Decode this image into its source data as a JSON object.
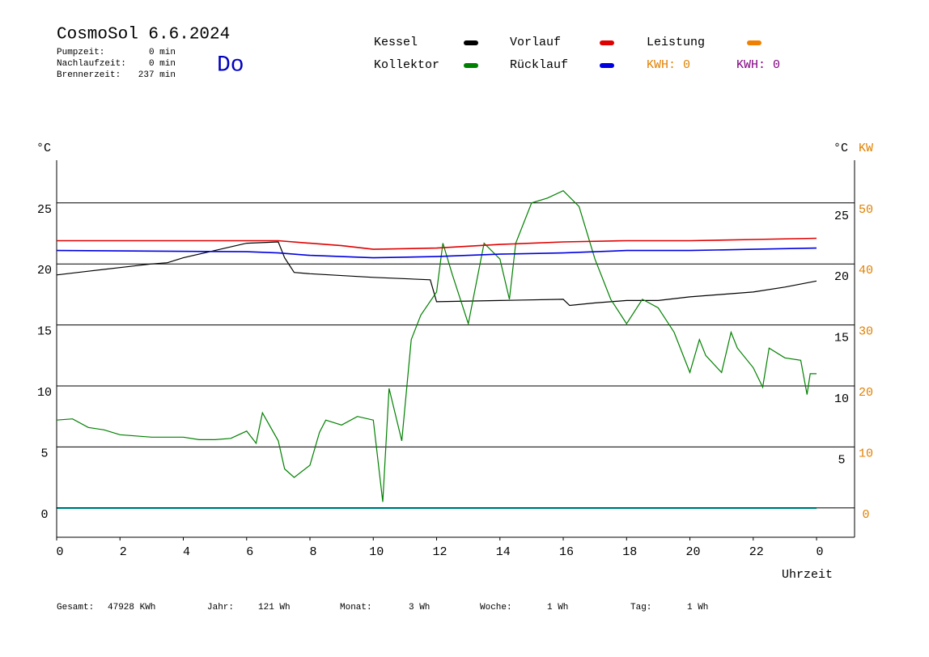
{
  "chart_data": {
    "type": "line",
    "title": "CosmoSol 6.6.2024",
    "day": "Do",
    "info": [
      {
        "label": "Pumpzeit:",
        "value": "0 min"
      },
      {
        "label": "Nachlaufzeit:",
        "value": "0 min"
      },
      {
        "label": "Brennerzeit:",
        "value": "237 min"
      }
    ],
    "y_label": "°C",
    "y2_label_c": "°C",
    "y2_label": "KW",
    "x_label": "Uhrzeit",
    "xlim": [
      0,
      25.2
    ],
    "xticks": [
      0,
      2,
      4,
      6,
      8,
      10,
      12,
      14,
      16,
      18,
      20,
      22,
      {
        "value": 24,
        "label": "0"
      }
    ],
    "ylim": [
      -2.4,
      28.5
    ],
    "yticks": [
      0,
      5,
      10,
      15,
      20,
      25
    ],
    "y2lim": [
      -4.8,
      57
    ],
    "y2ticks": [
      0,
      10,
      20,
      30,
      40,
      50
    ],
    "grid": true,
    "series": [
      {
        "name": "Kessel",
        "color": "#000000",
        "x": [
          0,
          1,
          2,
          3,
          3.5,
          4,
          5,
          6,
          7,
          7.2,
          7.5,
          8,
          10,
          11.8,
          12,
          14,
          16,
          16.2,
          17,
          18,
          19,
          20,
          21,
          22,
          23,
          24
        ],
        "values": [
          19.1,
          19.4,
          19.7,
          20.0,
          20.1,
          20.5,
          21.1,
          21.7,
          21.8,
          20.5,
          19.3,
          19.2,
          18.9,
          18.7,
          16.9,
          17.0,
          17.1,
          16.6,
          16.8,
          17.0,
          17.0,
          17.3,
          17.5,
          17.7,
          18.1,
          18.6
        ]
      },
      {
        "name": "Kollektor",
        "color": "#008000",
        "x": [
          0,
          0.5,
          1,
          1.5,
          2,
          2.5,
          3,
          3.5,
          4,
          4.5,
          5,
          5.5,
          6,
          6.3,
          6.5,
          7,
          7.2,
          7.5,
          8,
          8.3,
          8.5,
          9,
          9.5,
          10,
          10.3,
          10.5,
          10.9,
          11.2,
          11.5,
          12,
          12.2,
          12.5,
          13,
          13.5,
          14,
          14.3,
          14.5,
          15,
          15.5,
          16,
          16.5,
          17,
          17.5,
          18,
          18.5,
          19,
          19.5,
          20,
          20.3,
          20.5,
          21,
          21.3,
          21.5,
          22,
          22.3,
          22.5,
          23,
          23.5,
          23.7,
          23.8,
          24
        ],
        "values": [
          7.2,
          7.3,
          6.6,
          6.4,
          6.0,
          5.9,
          5.8,
          5.8,
          5.8,
          5.6,
          5.6,
          5.7,
          6.3,
          5.3,
          7.8,
          5.5,
          3.2,
          2.5,
          3.5,
          6.2,
          7.2,
          6.8,
          7.5,
          7.2,
          0.5,
          9.8,
          5.5,
          13.8,
          15.8,
          17.7,
          21.7,
          19.1,
          15.1,
          21.7,
          20.4,
          17.1,
          21.7,
          25.0,
          25.4,
          26.0,
          24.7,
          20.4,
          17.1,
          15.1,
          17.1,
          16.4,
          14.4,
          11.1,
          13.8,
          12.5,
          11.1,
          14.4,
          13.1,
          11.5,
          9.9,
          13.1,
          12.3,
          12.1,
          9.3,
          11.0,
          11.0
        ]
      },
      {
        "name": "Vorlauf",
        "color": "#e00000",
        "x": [
          0,
          7,
          8,
          9,
          10,
          12,
          14,
          16,
          18,
          20,
          22,
          24
        ],
        "values": [
          21.9,
          21.9,
          21.7,
          21.5,
          21.2,
          21.3,
          21.6,
          21.8,
          21.9,
          21.9,
          22.0,
          22.1
        ]
      },
      {
        "name": "Rücklauf",
        "color": "#0000e0",
        "x": [
          0,
          6,
          7,
          8,
          9,
          10,
          12,
          14,
          16,
          18,
          20,
          22,
          24
        ],
        "values": [
          21.1,
          21.0,
          20.9,
          20.7,
          20.6,
          20.5,
          20.6,
          20.8,
          20.9,
          21.1,
          21.1,
          21.2,
          21.3
        ]
      }
    ],
    "extra_legend": {
      "name": "Leistung",
      "color": "#f08000"
    },
    "kwh_labels": [
      {
        "text": "KWH: 0",
        "color": "#e08000"
      },
      {
        "text": "KWH: 0",
        "color": "#800080"
      }
    ],
    "footer": [
      {
        "label": "Gesamt:",
        "value": "47928 KWh"
      },
      {
        "label": "Jahr:",
        "value": "121 Wh"
      },
      {
        "label": "Monat:",
        "value": "3 Wh"
      },
      {
        "label": "Woche:",
        "value": "1 Wh"
      },
      {
        "label": "Tag:",
        "value": "1 Wh"
      }
    ]
  }
}
